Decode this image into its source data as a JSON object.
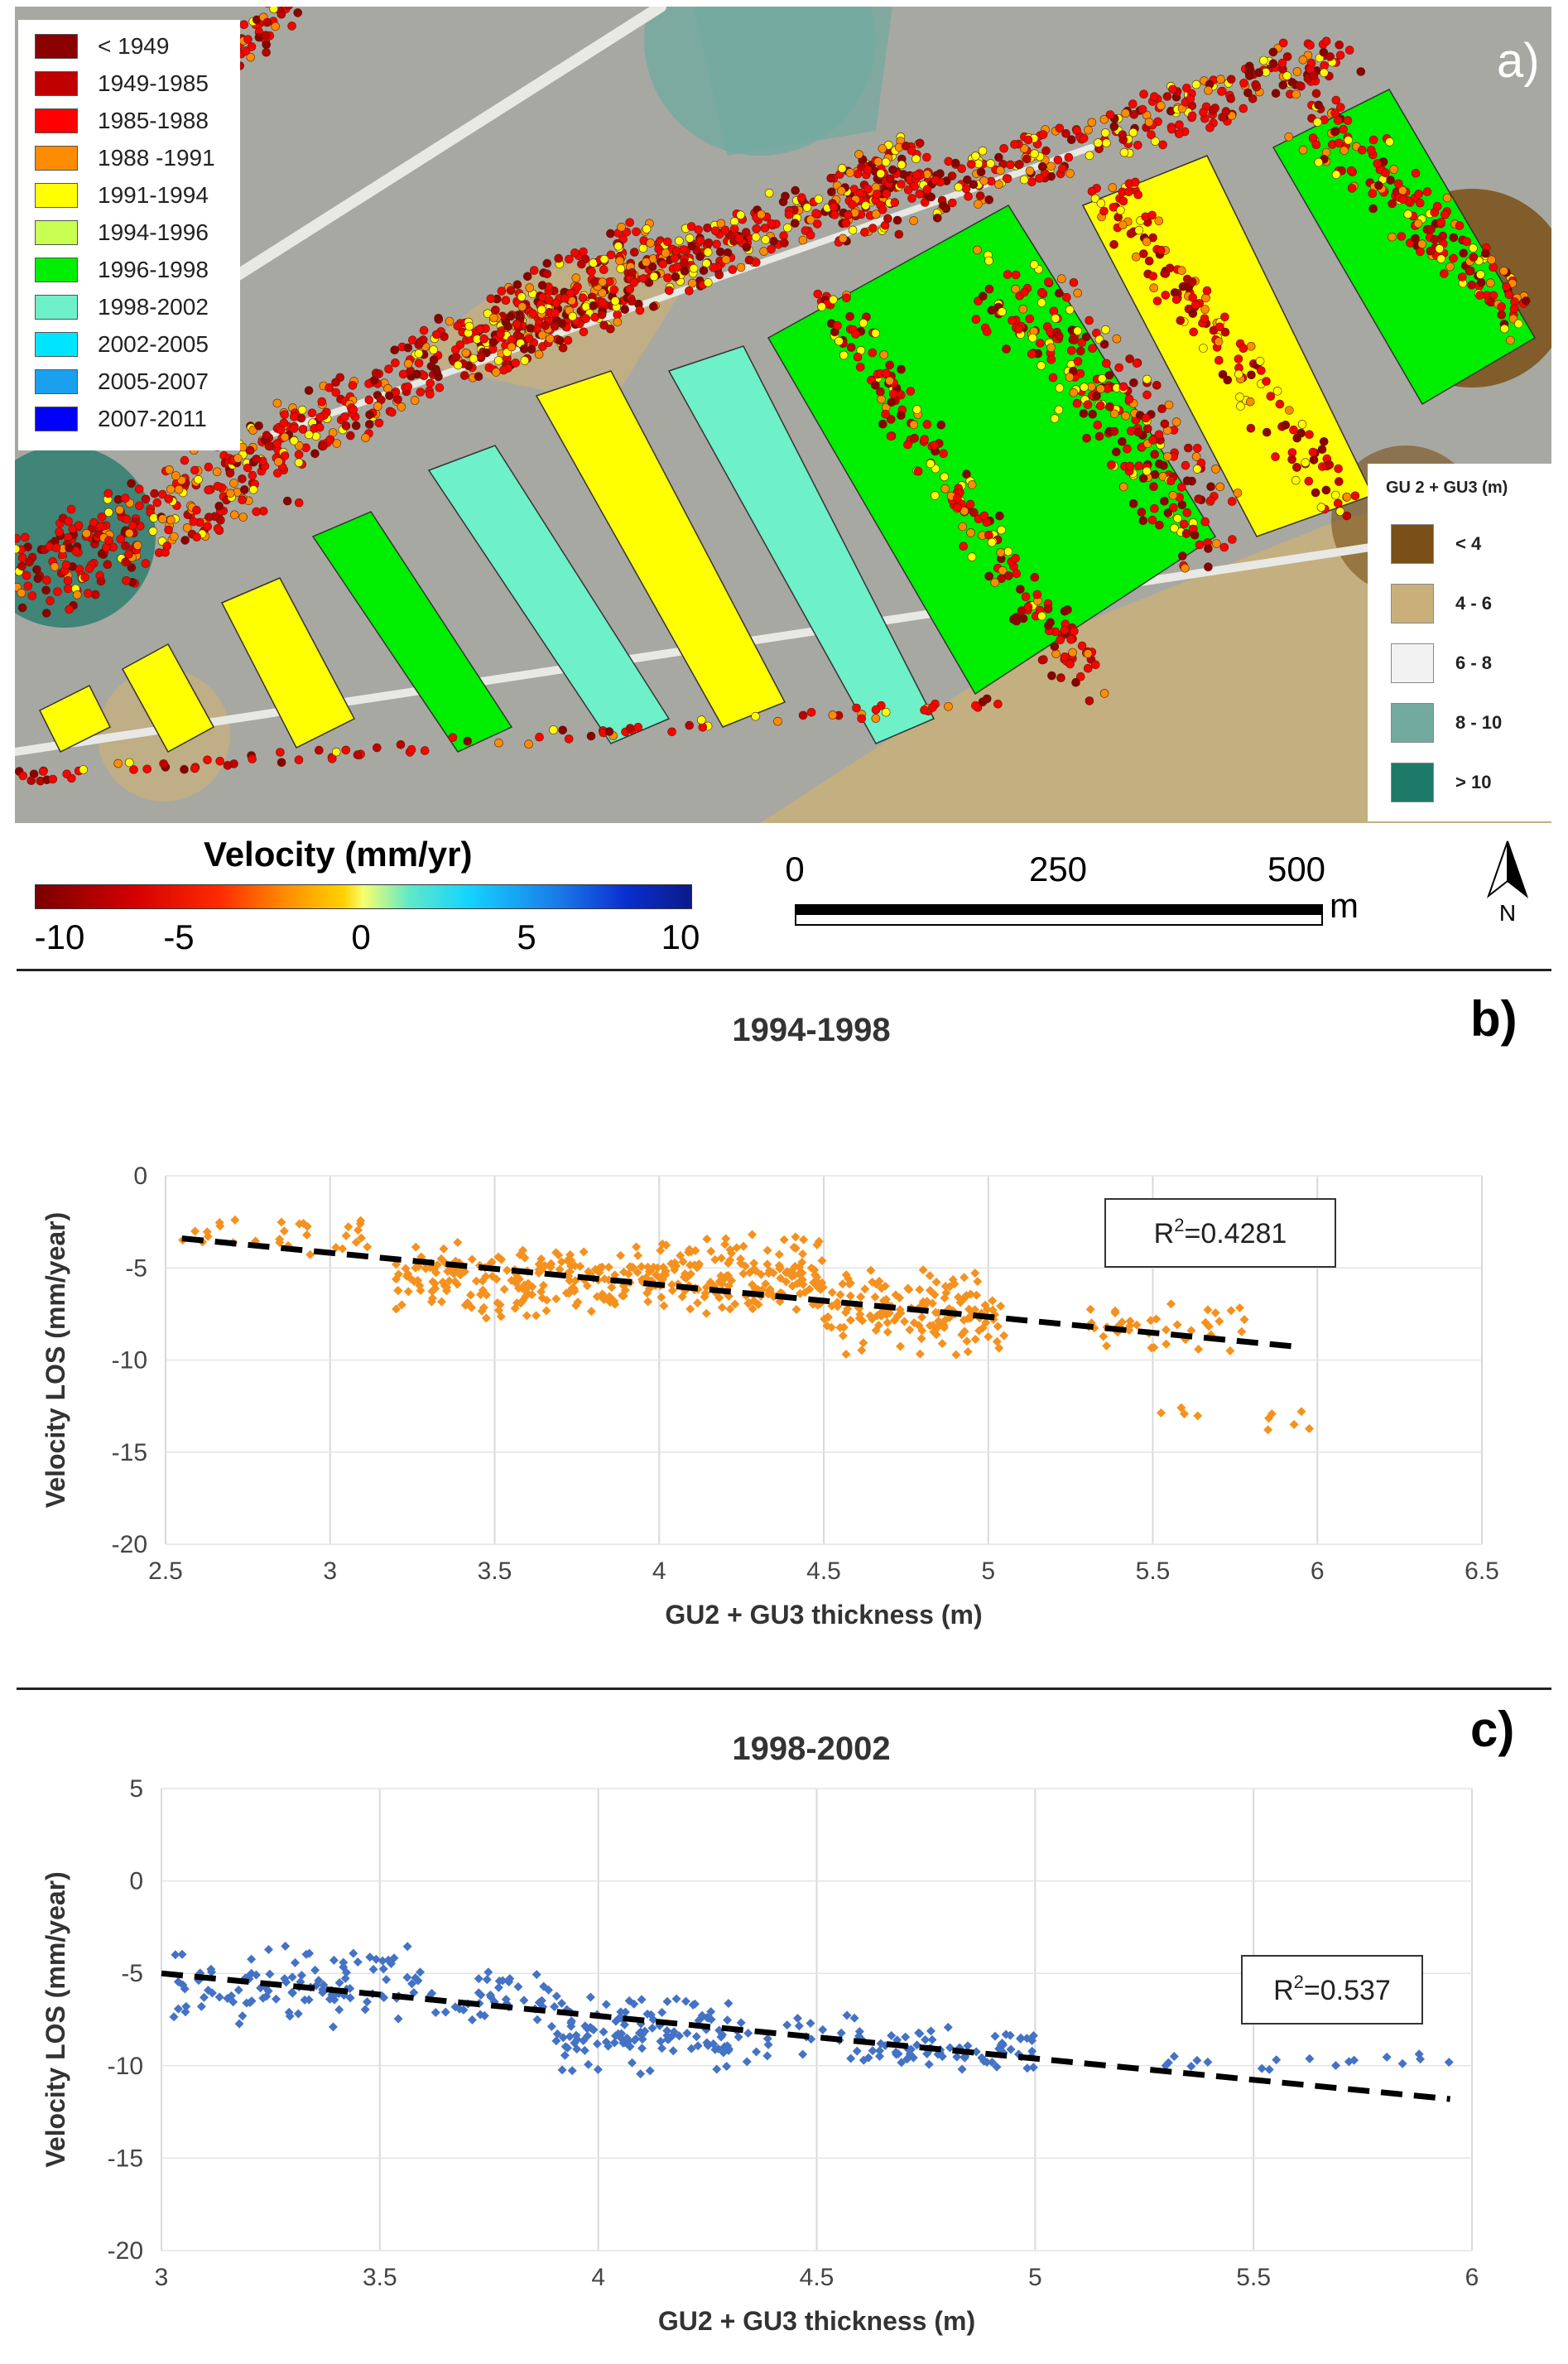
{
  "panel_a": {
    "letter": "a)",
    "year_legend": [
      {
        "label": "< 1949",
        "color": "#8b0000"
      },
      {
        "label": "1949-1985",
        "color": "#c00000"
      },
      {
        "label": "1985-1988",
        "color": "#ff0000"
      },
      {
        "label": "1988 -1991",
        "color": "#ff8c00"
      },
      {
        "label": "1991-1994",
        "color": "#ffff00"
      },
      {
        "label": "1994-1996",
        "color": "#c8ff50"
      },
      {
        "label": "1996-1998",
        "color": "#00ee00"
      },
      {
        "label": "1998-2002",
        "color": "#6ef0c8"
      },
      {
        "label": "2002-2005",
        "color": "#00e5ff"
      },
      {
        "label": "2005-2007",
        "color": "#1aa0ee"
      },
      {
        "label": "2007-2011",
        "color": "#0000ff"
      }
    ],
    "thickness_legend": {
      "title": "GU 2 + GU3 (m)",
      "items": [
        {
          "label": "< 4",
          "color": "#7a5018"
        },
        {
          "label": "4 - 6",
          "color": "#c9b07a"
        },
        {
          "label": "6 - 8",
          "color": "#f2f2f2"
        },
        {
          "label": "8 - 10",
          "color": "#72aaa0"
        },
        {
          "label": "> 10",
          "color": "#1e7a68"
        }
      ]
    },
    "velocity_legend": {
      "title": "Velocity (mm/yr)",
      "ticks": [
        "-10",
        "-5",
        "0",
        "5",
        "10"
      ]
    },
    "scale_bar": {
      "labels": [
        "0",
        "250",
        "500"
      ],
      "unit": "m"
    },
    "north_label": "N"
  },
  "panel_b": {
    "letter": "b)",
    "title": "1994-1998"
  },
  "panel_c": {
    "letter": "c)",
    "title": "1998-2002"
  },
  "chart_data": [
    {
      "type": "scatter",
      "title": "1994-1998",
      "xlabel": "GU2 + GU3 thickness (m)",
      "ylabel": "Velocity LOS (mm/year)",
      "xlim": [
        2.5,
        6.5
      ],
      "ylim": [
        -20,
        0
      ],
      "xticks": [
        "2.5",
        "3",
        "3.5",
        "4",
        "4.5",
        "5",
        "5.5",
        "6",
        "6.5"
      ],
      "yticks": [
        "0",
        "-5",
        "-10",
        "-15",
        "-20"
      ],
      "marker_color": "#f5911e",
      "annotation": {
        "prefix": "R",
        "sup": "2",
        "suffix": "=0.4281"
      },
      "trendline": {
        "x": [
          2.55,
          5.95
        ],
        "y": [
          -3.4,
          -9.3
        ]
      },
      "point_clusters": [
        {
          "x_range": [
            2.55,
            3.2
          ],
          "y_center": -3.3,
          "y_spread": 1.6,
          "count": 30
        },
        {
          "x_range": [
            3.2,
            4.0
          ],
          "y_center": -5.6,
          "y_spread": 2.2,
          "count": 210
        },
        {
          "x_range": [
            4.0,
            4.5
          ],
          "y_center": -5.4,
          "y_spread": 2.4,
          "count": 170
        },
        {
          "x_range": [
            4.5,
            5.05
          ],
          "y_center": -7.3,
          "y_spread": 2.6,
          "count": 150
        },
        {
          "x_range": [
            5.3,
            5.8
          ],
          "y_center": -8.2,
          "y_spread": 1.6,
          "count": 40
        },
        {
          "x_range": [
            5.5,
            5.7
          ],
          "y_center": -12.8,
          "y_spread": 0.7,
          "count": 4
        },
        {
          "x_range": [
            5.85,
            6.0
          ],
          "y_center": -13.3,
          "y_spread": 1.1,
          "count": 6
        }
      ]
    },
    {
      "type": "scatter",
      "title": "1998-2002",
      "xlabel": "GU2 + GU3 thickness (m)",
      "ylabel": "Velocity LOS (mm/year)",
      "xlim": [
        3,
        6
      ],
      "ylim": [
        -20,
        5
      ],
      "xticks": [
        "3",
        "3.5",
        "4",
        "4.5",
        "5",
        "5.5",
        "6"
      ],
      "yticks": [
        "5",
        "0",
        "-5",
        "-10",
        "-15",
        "-20"
      ],
      "marker_color": "#4472c4",
      "annotation": {
        "prefix": "R",
        "sup": "2",
        "suffix": "=0.537"
      },
      "trendline": {
        "x": [
          3.0,
          5.95
        ],
        "y": [
          -5.0,
          -11.8
        ]
      },
      "point_clusters": [
        {
          "x_range": [
            3.02,
            3.6
          ],
          "y_center": -5.6,
          "y_spread": 2.4,
          "count": 110
        },
        {
          "x_range": [
            3.6,
            3.9
          ],
          "y_center": -6.2,
          "y_spread": 1.8,
          "count": 40
        },
        {
          "x_range": [
            3.9,
            4.3
          ],
          "y_center": -8.2,
          "y_spread": 2.4,
          "count": 120
        },
        {
          "x_range": [
            4.3,
            4.6
          ],
          "y_center": -8.4,
          "y_spread": 1.6,
          "count": 25
        },
        {
          "x_range": [
            4.6,
            5.0
          ],
          "y_center": -9.1,
          "y_spread": 1.3,
          "count": 70
        },
        {
          "x_range": [
            5.2,
            5.95
          ],
          "y_center": -9.8,
          "y_spread": 0.6,
          "count": 18
        }
      ]
    }
  ]
}
